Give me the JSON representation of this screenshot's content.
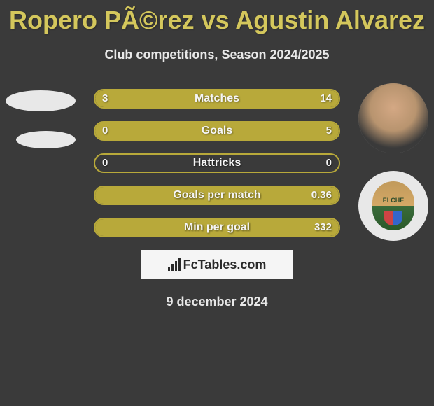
{
  "title": "Ropero PÃ©rez vs Agustin Alvarez",
  "subtitle": "Club competitions, Season 2024/2025",
  "stats": [
    {
      "label": "Matches",
      "left_value": "3",
      "right_value": "14",
      "left_pct": 18,
      "right_pct": 82,
      "bar_color": "#b8a93a"
    },
    {
      "label": "Goals",
      "left_value": "0",
      "right_value": "5",
      "left_pct": 0,
      "right_pct": 100,
      "bar_color": "#b8a93a"
    },
    {
      "label": "Hattricks",
      "left_value": "0",
      "right_value": "0",
      "left_pct": 0,
      "right_pct": 0,
      "bar_color": "#b8a93a"
    },
    {
      "label": "Goals per match",
      "left_value": "",
      "right_value": "0.36",
      "left_pct": 0,
      "right_pct": 100,
      "bar_color": "#b8a93a"
    },
    {
      "label": "Min per goal",
      "left_value": "",
      "right_value": "332",
      "left_pct": 0,
      "right_pct": 100,
      "bar_color": "#b8a93a"
    }
  ],
  "brand": "FcTables.com",
  "date": "9 december 2024",
  "team_right": "ELCHE",
  "colors": {
    "background": "#3a3a3a",
    "title_color": "#d4c75c",
    "text_color": "#e8e8e8",
    "bar_border": "#b8a93a",
    "bar_fill": "#b8a93a",
    "brand_bg": "#f5f5f5",
    "brand_text": "#2a2a2a"
  }
}
